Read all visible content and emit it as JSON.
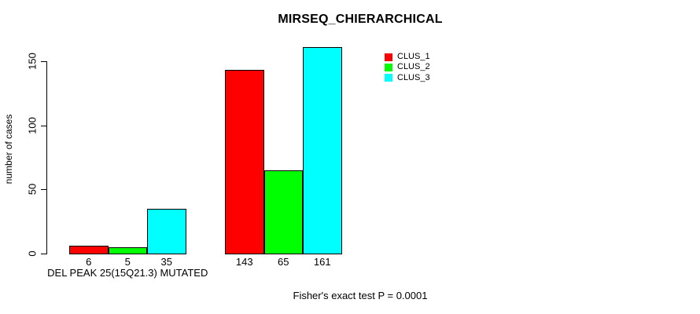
{
  "chart": {
    "title": "MIRSEQ_CHIERARCHICAL",
    "ylabel": "number of cases",
    "footer": "Fisher's exact test P = 0.0001"
  },
  "legend": {
    "items": [
      {
        "label": "CLUS_1",
        "color": "#FF0000"
      },
      {
        "label": "CLUS_2",
        "color": "#00FF00"
      },
      {
        "label": "CLUS_3",
        "color": "#00FFFF"
      }
    ]
  },
  "chart_data": {
    "type": "bar",
    "title": "MIRSEQ_CHIERARCHICAL",
    "xlabel": "",
    "ylabel": "number of cases",
    "categories": [
      "DEL PEAK 25(15Q21.3) MUTATED",
      ""
    ],
    "series": [
      {
        "name": "CLUS_1",
        "color": "#FF0000",
        "values": [
          6,
          143
        ]
      },
      {
        "name": "CLUS_2",
        "color": "#00FF00",
        "values": [
          5,
          65
        ]
      },
      {
        "name": "CLUS_3",
        "color": "#00FFFF",
        "values": [
          35,
          161
        ]
      }
    ],
    "bar_value_labels": [
      [
        6,
        5,
        35
      ],
      [
        143,
        65,
        161
      ]
    ],
    "yticks": [
      0,
      50,
      100,
      150
    ],
    "ylim": [
      0,
      161
    ],
    "grid": false,
    "legend_position": "top-right",
    "annotation": "Fisher's exact test P = 0.0001"
  }
}
